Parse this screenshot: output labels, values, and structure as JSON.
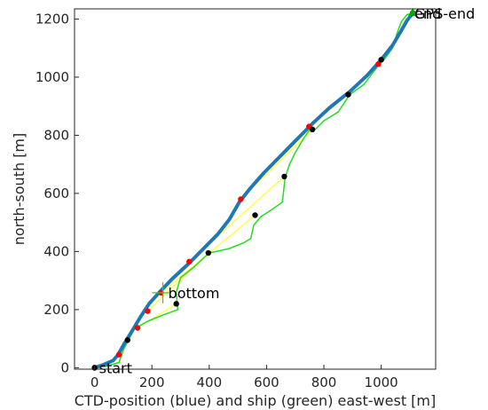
{
  "chart_data": {
    "type": "line",
    "xlabel": "CTD-position (blue) and ship (green) east-west [m]",
    "ylabel": "north-south [m]",
    "xlim": [
      -70,
      1190
    ],
    "ylim": [
      -5,
      1235
    ],
    "grid": false,
    "x_ticks": [
      0,
      200,
      400,
      600,
      800,
      1000
    ],
    "y_ticks": [
      0,
      200,
      400,
      600,
      800,
      1000,
      1200
    ],
    "x_tick_labels": [
      "0",
      "200",
      "400",
      "600",
      "800",
      "1000"
    ],
    "y_tick_labels": [
      "0",
      "200",
      "400",
      "600",
      "800",
      "1000",
      "1200"
    ],
    "colors": {
      "ctd": "#1f77b4",
      "ship": "#22dd22",
      "link": "#ffff33",
      "ctd_marker": "#ff0000",
      "ship_marker": "#000000",
      "gps_marker": "#00aa00"
    },
    "series": [
      {
        "key": "ctd",
        "points": [
          [
            0,
            0
          ],
          [
            30,
            10
          ],
          [
            65,
            25
          ],
          [
            82,
            45
          ],
          [
            105,
            85
          ],
          [
            130,
            125
          ],
          [
            160,
            175
          ],
          [
            190,
            220
          ],
          [
            228,
            262
          ],
          [
            270,
            305
          ],
          [
            330,
            360
          ],
          [
            380,
            410
          ],
          [
            430,
            460
          ],
          [
            470,
            510
          ],
          [
            505,
            570
          ],
          [
            545,
            620
          ],
          [
            590,
            670
          ],
          [
            630,
            710
          ],
          [
            670,
            750
          ],
          [
            720,
            800
          ],
          [
            760,
            840
          ],
          [
            820,
            895
          ],
          [
            890,
            950
          ],
          [
            950,
            1005
          ],
          [
            1000,
            1060
          ],
          [
            1040,
            1110
          ],
          [
            1070,
            1160
          ],
          [
            1090,
            1195
          ],
          [
            1110,
            1220
          ]
        ]
      },
      {
        "key": "ship",
        "points": [
          [
            0,
            0
          ],
          [
            40,
            5
          ],
          [
            85,
            18
          ],
          [
            100,
            60
          ],
          [
            118,
            95
          ],
          [
            140,
            135
          ],
          [
            185,
            160
          ],
          [
            235,
            180
          ],
          [
            290,
            200
          ],
          [
            285,
            260
          ],
          [
            300,
            310
          ],
          [
            345,
            345
          ],
          [
            400,
            395
          ],
          [
            470,
            410
          ],
          [
            520,
            430
          ],
          [
            545,
            445
          ],
          [
            555,
            490
          ],
          [
            580,
            520
          ],
          [
            620,
            545
          ],
          [
            655,
            570
          ],
          [
            665,
            655
          ],
          [
            680,
            700
          ],
          [
            700,
            740
          ],
          [
            730,
            790
          ],
          [
            755,
            825
          ],
          [
            770,
            820
          ],
          [
            800,
            850
          ],
          [
            850,
            880
          ],
          [
            890,
            940
          ],
          [
            940,
            975
          ],
          [
            990,
            1040
          ],
          [
            1010,
            1060
          ],
          [
            1040,
            1100
          ],
          [
            1055,
            1150
          ],
          [
            1070,
            1190
          ],
          [
            1090,
            1215
          ],
          [
            1110,
            1220
          ]
        ]
      }
    ],
    "ctd_markers": [
      [
        0,
        0
      ],
      [
        85,
        45
      ],
      [
        150,
        137
      ],
      [
        185,
        195
      ],
      [
        232,
        258
      ],
      [
        330,
        365
      ],
      [
        510,
        580
      ],
      [
        748,
        830
      ],
      [
        990,
        1045
      ],
      [
        1110,
        1220
      ]
    ],
    "ship_markers": [
      [
        0,
        0
      ],
      [
        115,
        95
      ],
      [
        285,
        220
      ],
      [
        397,
        395
      ],
      [
        560,
        525
      ],
      [
        662,
        658
      ],
      [
        760,
        820
      ],
      [
        885,
        940
      ],
      [
        1000,
        1060
      ],
      [
        1110,
        1220
      ]
    ],
    "annotations": [
      {
        "text": "start",
        "x": 0,
        "y": 0
      },
      {
        "text": "bottom",
        "x": 232,
        "y": 258
      },
      {
        "text": "end",
        "x": 1110,
        "y": 1220
      },
      {
        "text": "GPS-end",
        "x": 1110,
        "y": 1220
      }
    ]
  }
}
